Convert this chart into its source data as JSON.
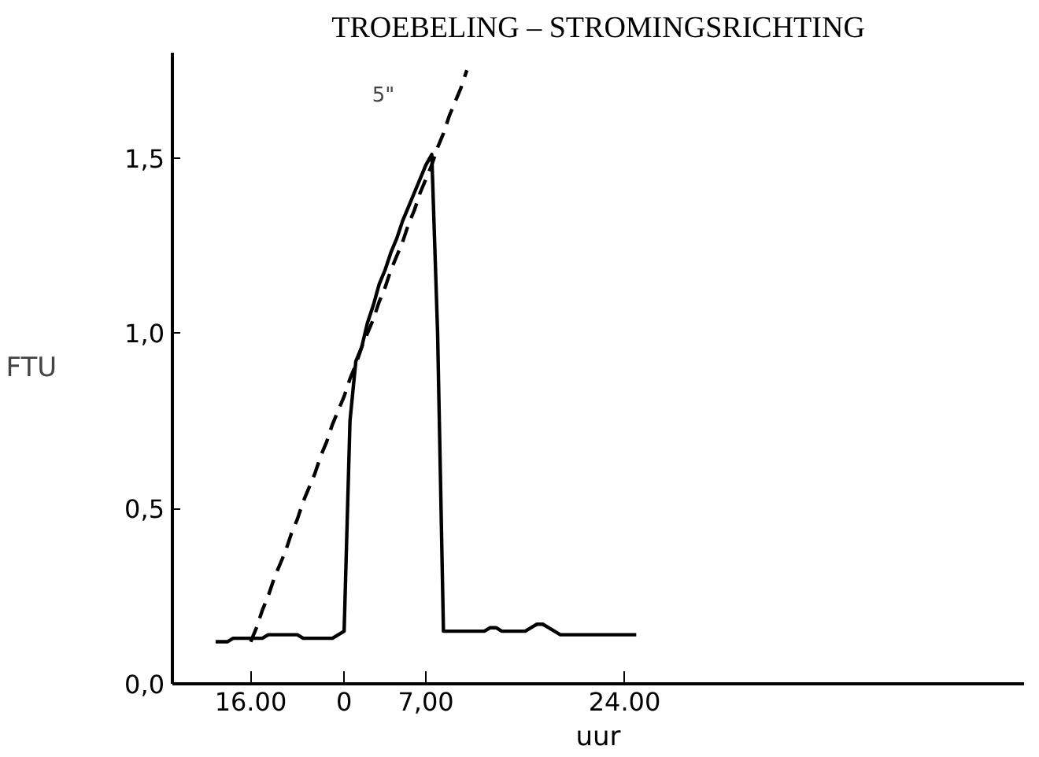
{
  "chart_data": {
    "type": "line",
    "title": "TROEBELING – STROMINGSRICHTING",
    "xlabel": "uur",
    "ylabel": "FTU",
    "annotations": [
      "5\""
    ],
    "categories": [
      null,
      null,
      null,
      null,
      null,
      null,
      "16.00",
      null,
      null,
      null,
      null,
      null,
      null,
      null,
      null,
      null,
      null,
      null,
      null,
      null,
      null,
      null,
      "0",
      null,
      null,
      null,
      null,
      null,
      null,
      null,
      null,
      null,
      null,
      null,
      null,
      null,
      "7,00",
      null,
      null,
      null,
      null,
      null,
      null,
      null,
      null,
      null,
      null,
      null,
      null,
      null,
      null,
      null,
      null,
      null,
      null,
      null,
      null,
      null,
      null,
      null,
      null,
      null,
      null,
      null,
      null,
      null,
      null,
      null,
      null,
      null,
      "24.00",
      null,
      null,
      null
    ],
    "series": [
      {
        "color": "#000000",
        "line_style": "solid",
        "values": [
          0.12,
          0.12,
          0.12,
          0.13,
          0.13,
          0.13,
          0.13,
          0.13,
          0.13,
          0.14,
          0.14,
          0.14,
          0.14,
          0.14,
          0.14,
          0.13,
          0.13,
          0.13,
          0.13,
          0.13,
          0.13,
          0.14,
          0.15,
          0.75,
          0.92,
          0.96,
          1.03,
          1.08,
          1.14,
          1.18,
          1.23,
          1.27,
          1.32,
          1.36,
          1.4,
          1.44,
          1.48,
          1.51,
          1.0,
          0.15,
          0.15,
          0.15,
          0.15,
          0.15,
          0.15,
          0.15,
          0.15,
          0.16,
          0.16,
          0.15,
          0.15,
          0.15,
          0.15,
          0.15,
          0.16,
          0.17,
          0.17,
          0.16,
          0.15,
          0.14,
          0.14,
          0.14,
          0.14,
          0.14,
          0.14,
          0.14,
          0.14,
          0.14,
          0.14,
          0.14,
          0.14,
          0.14,
          0.14,
          null
        ]
      },
      {
        "color": "#000000",
        "line_style": "dashed",
        "values": [
          null,
          null,
          null,
          null,
          null,
          null,
          0.12,
          0.16,
          0.21,
          0.25,
          0.3,
          0.34,
          0.38,
          0.43,
          0.47,
          0.52,
          0.56,
          0.6,
          0.65,
          0.69,
          0.74,
          0.78,
          0.82,
          0.87,
          0.91,
          0.96,
          1.0,
          1.04,
          1.09,
          1.13,
          1.18,
          1.22,
          1.26,
          1.31,
          1.35,
          1.4,
          1.44,
          1.48,
          1.53,
          1.57,
          1.62,
          1.66,
          1.7,
          1.75,
          null,
          null,
          null,
          null,
          null,
          null,
          null,
          null,
          null,
          null,
          null,
          null,
          null,
          null,
          null,
          null,
          null,
          null,
          null,
          null,
          null,
          null,
          null,
          null,
          null,
          null,
          null,
          null,
          null,
          null
        ]
      }
    ],
    "ylim": [
      0,
      1.8
    ],
    "yticks": [
      {
        "value": 0,
        "label": "0,0"
      },
      {
        "value": 0.5,
        "label": "0,5"
      },
      {
        "value": 1,
        "label": "1,0"
      },
      {
        "value": 1.5,
        "label": "1,5"
      }
    ],
    "grid": false
  }
}
